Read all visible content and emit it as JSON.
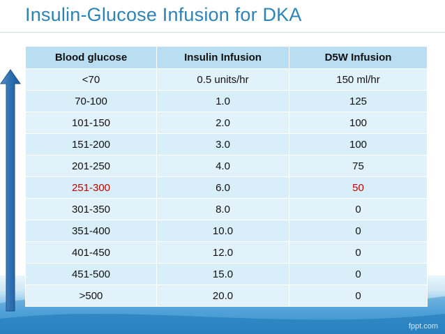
{
  "slide": {
    "title": "Insulin-Glucose Infusion for DKA",
    "watermark": "fppt.com"
  },
  "table": {
    "headers": [
      "Blood glucose",
      "Insulin Infusion",
      "D5W Infusion"
    ],
    "rows": [
      [
        "<70",
        "0.5 units/hr",
        "150 ml/hr"
      ],
      [
        "70-100",
        "1.0",
        "125"
      ],
      [
        "101-150",
        "2.0",
        "100"
      ],
      [
        "151-200",
        "3.0",
        "100"
      ],
      [
        "201-250",
        "4.0",
        "75"
      ],
      [
        "251-300",
        "6.0",
        "50"
      ],
      [
        "301-350",
        "8.0",
        "0"
      ],
      [
        "351-400",
        "10.0",
        "0"
      ],
      [
        "401-450",
        "12.0",
        "0"
      ],
      [
        "451-500",
        "15.0",
        "0"
      ],
      [
        ">500",
        "20.0",
        "0"
      ]
    ],
    "highlight_color": "#C00000"
  },
  "colors": {
    "title": "#2C83B7",
    "header_fill": "#B9DDF1",
    "row_fill": "#E2F2FB",
    "arrow": "#2E6FB0"
  },
  "icons": {
    "side_arrow": "up-arrow-icon"
  }
}
